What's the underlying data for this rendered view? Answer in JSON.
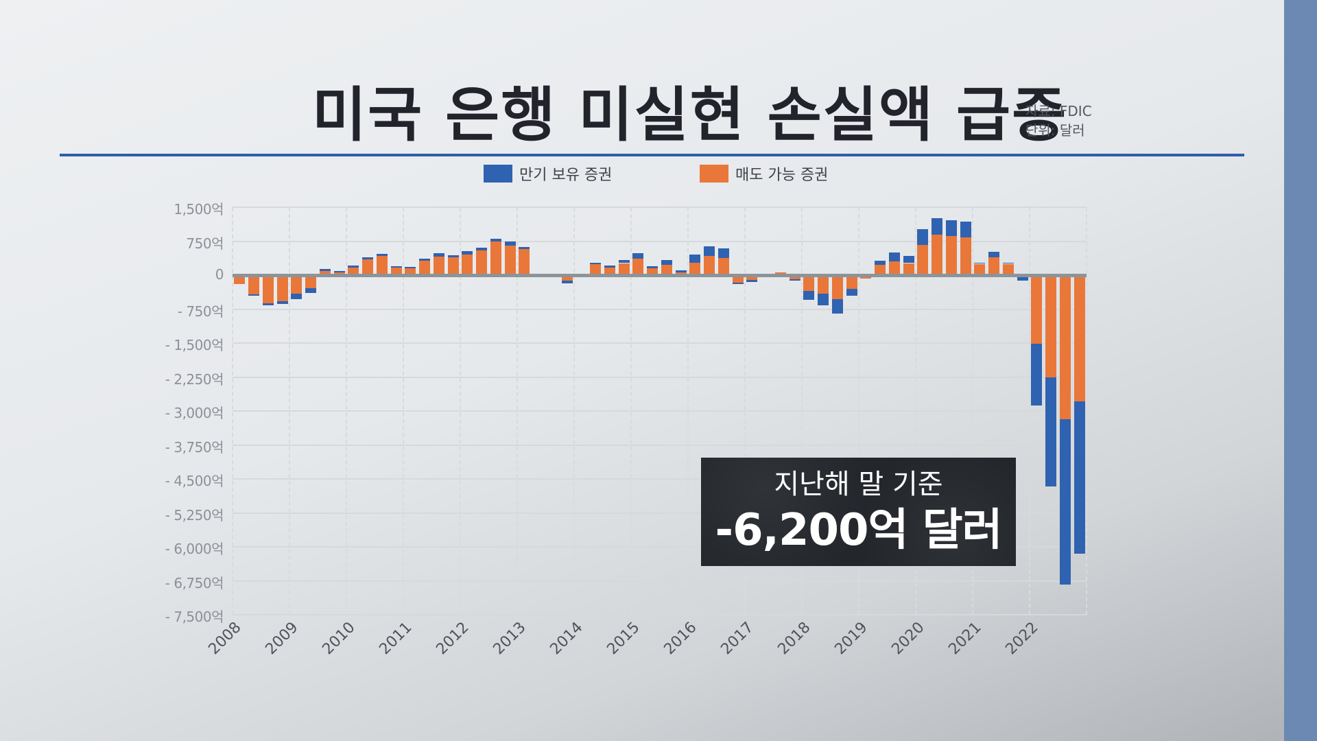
{
  "header": {
    "title": "미국 은행 미실현 손실액 급증",
    "source": "자료: FDIC",
    "unit": "단위: 달러"
  },
  "legend": {
    "items": [
      {
        "label": "만기 보유 증권",
        "color": "#2f62b0"
      },
      {
        "label": "매도 가능 증권",
        "color": "#e9773a"
      }
    ]
  },
  "annotation": {
    "subtitle": "지난해 말 기준",
    "value": "-6,200억 달러"
  },
  "colors": {
    "held_to_maturity": "#2f62b0",
    "available_for_sale": "#e9773a",
    "zero_line": "#8c9499",
    "side_strip": "#6c89b3",
    "title_underline": "#2f5ea8"
  },
  "chart_data": {
    "type": "bar",
    "stacked": true,
    "title": "미국 은행 미실현 손실액 급증",
    "xlabel": "",
    "ylabel": "",
    "unit": "억 달러",
    "ylim": [
      -7500,
      1500
    ],
    "y_ticks": [
      1500,
      750,
      0,
      -750,
      -1500,
      -2250,
      -3000,
      -3750,
      -4500,
      -5250,
      -6000,
      -6750,
      -7500
    ],
    "y_tick_labels": [
      "1,500억",
      "750억",
      "0",
      "- 750억",
      "- 1,500억",
      "- 2,250억",
      "- 3,000억",
      "- 3,750억",
      "- 4,500억",
      "- 5,250억",
      "- 6,000억",
      "- 6,750억",
      "- 7,500억"
    ],
    "x_tick_labels": [
      "2008",
      "2009",
      "2010",
      "2011",
      "2012",
      "2013",
      "2014",
      "2015",
      "2016",
      "2017",
      "2018",
      "2019",
      "2020",
      "2021",
      "2022"
    ],
    "grid": true,
    "legend_position": "top",
    "categories": [
      "2008Q1",
      "2008Q2",
      "2008Q3",
      "2008Q4",
      "2009Q1",
      "2009Q2",
      "2009Q3",
      "2009Q4",
      "2010Q1",
      "2010Q2",
      "2010Q3",
      "2010Q4",
      "2011Q1",
      "2011Q2",
      "2011Q3",
      "2011Q4",
      "2012Q1",
      "2012Q2",
      "2012Q3",
      "2012Q4",
      "2013Q1",
      "2013Q2",
      "2013Q3",
      "2013Q4",
      "2014Q1",
      "2014Q2",
      "2014Q3",
      "2014Q4",
      "2015Q1",
      "2015Q2",
      "2015Q3",
      "2015Q4",
      "2016Q1",
      "2016Q2",
      "2016Q3",
      "2016Q4",
      "2017Q1",
      "2017Q2",
      "2017Q3",
      "2017Q4",
      "2018Q1",
      "2018Q2",
      "2018Q3",
      "2018Q4",
      "2019Q1",
      "2019Q2",
      "2019Q3",
      "2019Q4",
      "2020Q1",
      "2020Q2",
      "2020Q3",
      "2020Q4",
      "2021Q1",
      "2021Q2",
      "2021Q3",
      "2021Q4",
      "2022Q1",
      "2022Q2",
      "2022Q3",
      "2022Q4"
    ],
    "series": [
      {
        "name": "매도 가능 증권",
        "color": "#e9773a",
        "values": [
          -200,
          -430,
          -620,
          -580,
          -410,
          -290,
          95,
          65,
          165,
          345,
          420,
          165,
          155,
          315,
          405,
          390,
          450,
          540,
          735,
          645,
          570,
          30,
          30,
          -115,
          -30,
          240,
          165,
          265,
          365,
          150,
          225,
          55,
          280,
          430,
          375,
          -170,
          -105,
          0,
          55,
          -90,
          -355,
          -415,
          -530,
          -310,
          -75,
          225,
          300,
          265,
          660,
          890,
          865,
          830,
          250,
          390,
          250,
          0,
          -1515,
          -2265,
          -3180,
          -2790
        ]
      },
      {
        "name": "만기 보유 증권",
        "color": "#2f62b0",
        "values": [
          0,
          -25,
          -45,
          -60,
          -120,
          -100,
          35,
          20,
          40,
          45,
          50,
          30,
          25,
          45,
          75,
          45,
          80,
          65,
          65,
          95,
          50,
          0,
          0,
          -65,
          0,
          40,
          45,
          75,
          120,
          45,
          105,
          50,
          170,
          210,
          210,
          -30,
          -45,
          0,
          0,
          -30,
          -190,
          -250,
          -320,
          -145,
          0,
          100,
          205,
          165,
          355,
          365,
          345,
          345,
          30,
          120,
          25,
          -120,
          -1365,
          -2405,
          -3660,
          -3360
        ]
      }
    ]
  }
}
